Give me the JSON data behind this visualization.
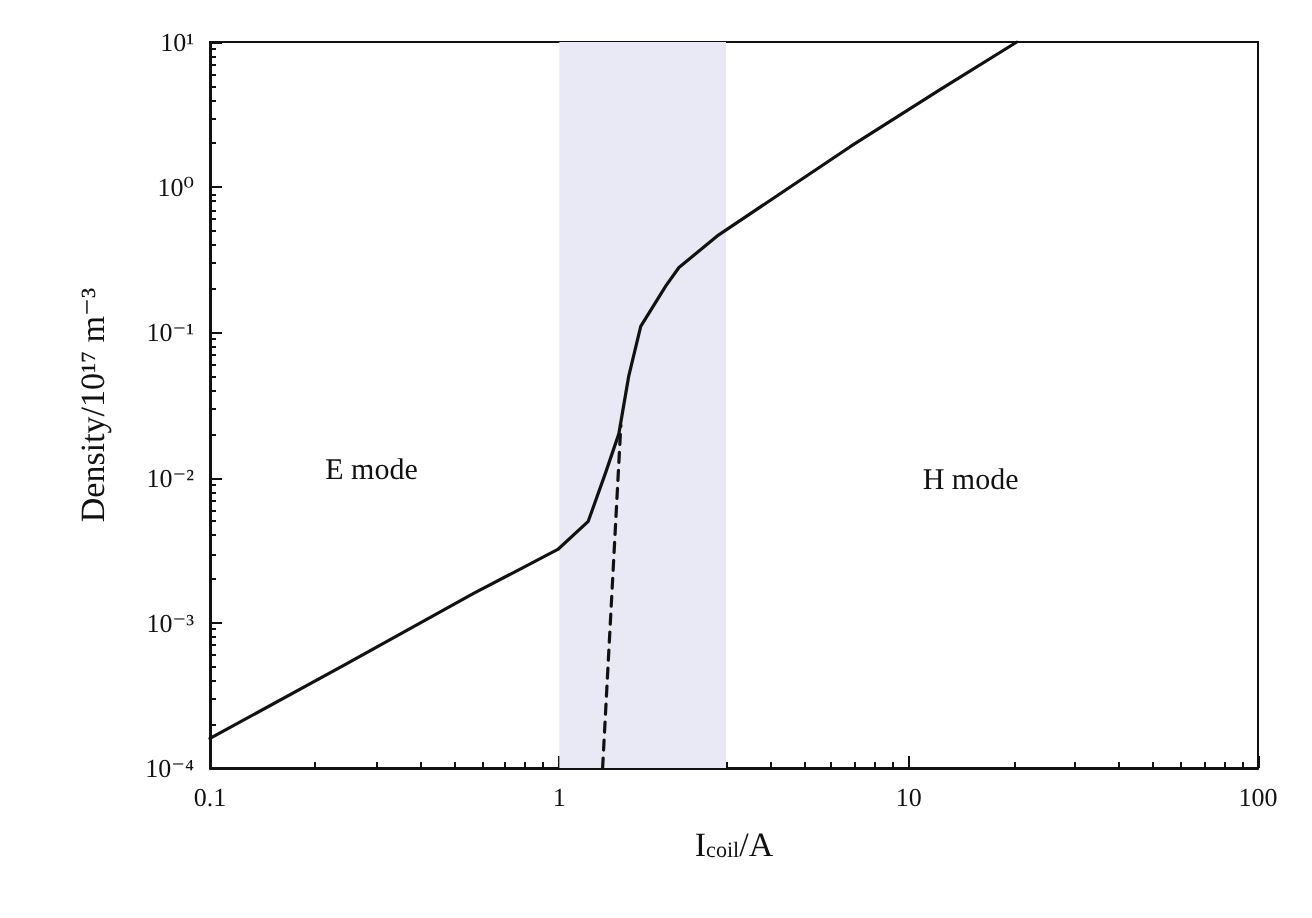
{
  "chart_data": {
    "type": "line",
    "xlabel": "I$_{coil}$/A",
    "ylabel": "Density/10¹⁷ m⁻³",
    "log": "xy",
    "xlim": [
      0.1,
      100
    ],
    "ylim": [
      0.0001,
      10
    ],
    "xticks": [
      0.1,
      1,
      10,
      100
    ],
    "yticks": [
      {
        "value": 0.0001,
        "label": "10⁻⁴"
      },
      {
        "value": 0.001,
        "label": "10⁻³"
      },
      {
        "value": 0.01,
        "label": "10⁻²"
      },
      {
        "value": 0.1,
        "label": "10⁻¹"
      },
      {
        "value": 1,
        "label": "10⁰"
      },
      {
        "value": 10,
        "label": "10¹"
      }
    ],
    "marker": "none",
    "series": [
      {
        "color": "#111111",
        "line_style": "solid",
        "x": [
          0.1,
          0.245,
          0.57,
          0.99,
          1.21,
          1.36,
          1.48,
          1.58,
          1.71,
          2.02,
          2.2,
          2.86,
          6.8,
          12.3,
          20.4
        ],
        "values": [
          0.00016,
          0.00052,
          0.0016,
          0.0032,
          0.005,
          0.011,
          0.02,
          0.05,
          0.11,
          0.21,
          0.28,
          0.47,
          1.9,
          4.7,
          10
        ]
      },
      {
        "color": "#111111",
        "line_style": "dashed",
        "x": [
          1.33,
          1.5
        ],
        "values": [
          0.0001,
          0.023
        ]
      }
    ],
    "bands": [
      {
        "axis": "x",
        "from": 1,
        "to": 3,
        "color": "#e9e9f5"
      }
    ],
    "annotations": [
      "E mode",
      "H mode"
    ]
  }
}
